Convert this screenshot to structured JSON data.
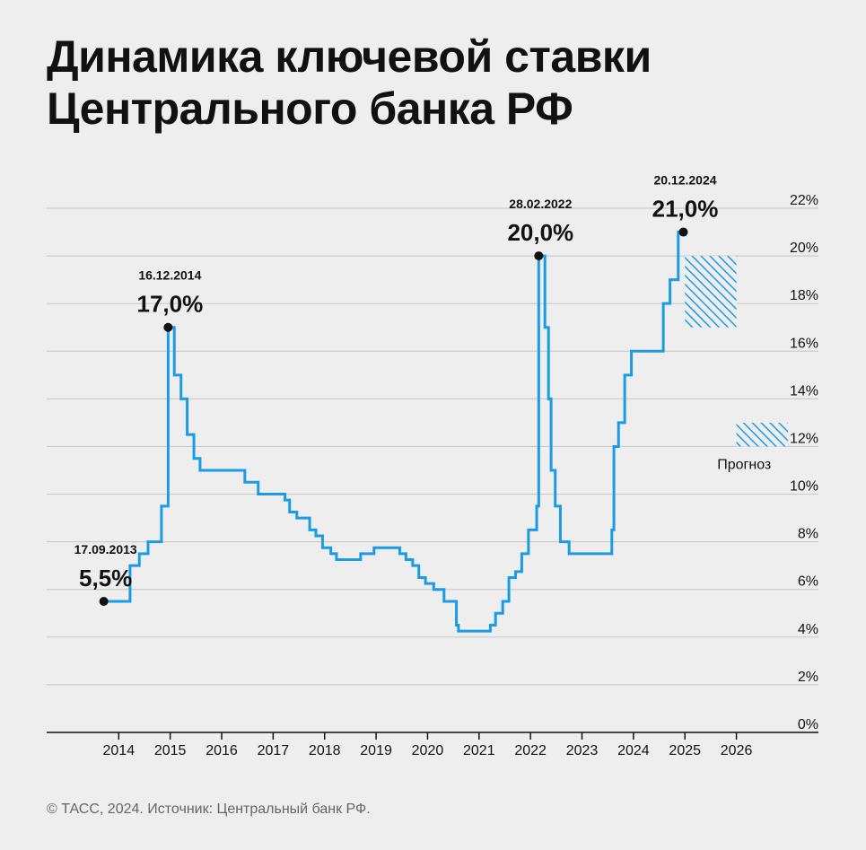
{
  "title": {
    "line1": "Динамика ключевой ставки",
    "line2": "Центрального банка РФ"
  },
  "source": "© ТАСС, 2024. Источник: Центральный банк РФ.",
  "colors": {
    "line": "#1a9be6",
    "grid": "#cccccc",
    "axis": "#111111",
    "text": "#111111",
    "background": "#eeeeee"
  },
  "chart_data": {
    "type": "line",
    "step": true,
    "title": "Динамика ключевой ставки Центрального банка РФ",
    "xlabel": "",
    "ylabel": "",
    "x_ticks": [
      "2014",
      "2015",
      "2016",
      "2017",
      "2018",
      "2019",
      "2020",
      "2021",
      "2022",
      "2023",
      "2024",
      "2025",
      "2026"
    ],
    "y_ticks": [
      "0%",
      "2%",
      "4%",
      "6%",
      "8%",
      "10%",
      "12%",
      "14%",
      "16%",
      "18%",
      "20%",
      "22%"
    ],
    "ylim": [
      0,
      22
    ],
    "xlim": [
      2012.6,
      2026.6
    ],
    "grid": true,
    "series": [
      {
        "points": [
          [
            2013.71,
            5.5
          ],
          [
            2014.22,
            7.0
          ],
          [
            2014.4,
            7.5
          ],
          [
            2014.57,
            8.0
          ],
          [
            2014.83,
            9.5
          ],
          [
            2014.96,
            17.0
          ],
          [
            2015.08,
            15.0
          ],
          [
            2015.21,
            14.0
          ],
          [
            2015.33,
            12.5
          ],
          [
            2015.46,
            11.5
          ],
          [
            2015.58,
            11.0
          ],
          [
            2016.45,
            10.5
          ],
          [
            2016.71,
            10.0
          ],
          [
            2017.23,
            9.75
          ],
          [
            2017.32,
            9.25
          ],
          [
            2017.46,
            9.0
          ],
          [
            2017.71,
            8.5
          ],
          [
            2017.83,
            8.25
          ],
          [
            2017.96,
            7.75
          ],
          [
            2018.12,
            7.5
          ],
          [
            2018.23,
            7.25
          ],
          [
            2018.7,
            7.5
          ],
          [
            2018.96,
            7.75
          ],
          [
            2019.46,
            7.5
          ],
          [
            2019.58,
            7.25
          ],
          [
            2019.71,
            7.0
          ],
          [
            2019.83,
            6.5
          ],
          [
            2019.96,
            6.25
          ],
          [
            2020.12,
            6.0
          ],
          [
            2020.32,
            5.5
          ],
          [
            2020.56,
            4.5
          ],
          [
            2020.6,
            4.25
          ],
          [
            2021.22,
            4.5
          ],
          [
            2021.32,
            5.0
          ],
          [
            2021.46,
            5.5
          ],
          [
            2021.58,
            6.5
          ],
          [
            2021.71,
            6.75
          ],
          [
            2021.83,
            7.5
          ],
          [
            2021.96,
            8.5
          ],
          [
            2022.12,
            9.5
          ],
          [
            2022.16,
            20.0
          ],
          [
            2022.28,
            17.0
          ],
          [
            2022.35,
            14.0
          ],
          [
            2022.4,
            11.0
          ],
          [
            2022.48,
            9.5
          ],
          [
            2022.58,
            8.0
          ],
          [
            2022.75,
            7.5
          ],
          [
            2023.58,
            8.5
          ],
          [
            2023.62,
            12.0
          ],
          [
            2023.71,
            13.0
          ],
          [
            2023.83,
            15.0
          ],
          [
            2023.96,
            16.0
          ],
          [
            2024.58,
            18.0
          ],
          [
            2024.71,
            19.0
          ],
          [
            2024.87,
            21.0
          ],
          [
            2024.97,
            21.0
          ]
        ]
      }
    ],
    "annotations": [
      {
        "date": "17.09.2013",
        "value_label": "5,5%",
        "x": 2013.71,
        "y": 5.5
      },
      {
        "date": "16.12.2014",
        "value_label": "17,0%",
        "x": 2014.96,
        "y": 17.0
      },
      {
        "date": "28.02.2022",
        "value_label": "20,0%",
        "x": 2022.16,
        "y": 20.0
      },
      {
        "date": "20.12.2024",
        "value_label": "21,0%",
        "x": 2024.97,
        "y": 21.0
      }
    ],
    "forecast": {
      "label": "Прогноз",
      "ranges": [
        {
          "year": 2025,
          "y_low": 17.0,
          "y_high": 20.0
        },
        {
          "year": 2026,
          "y_low": 12.0,
          "y_high": 13.0
        }
      ]
    }
  }
}
